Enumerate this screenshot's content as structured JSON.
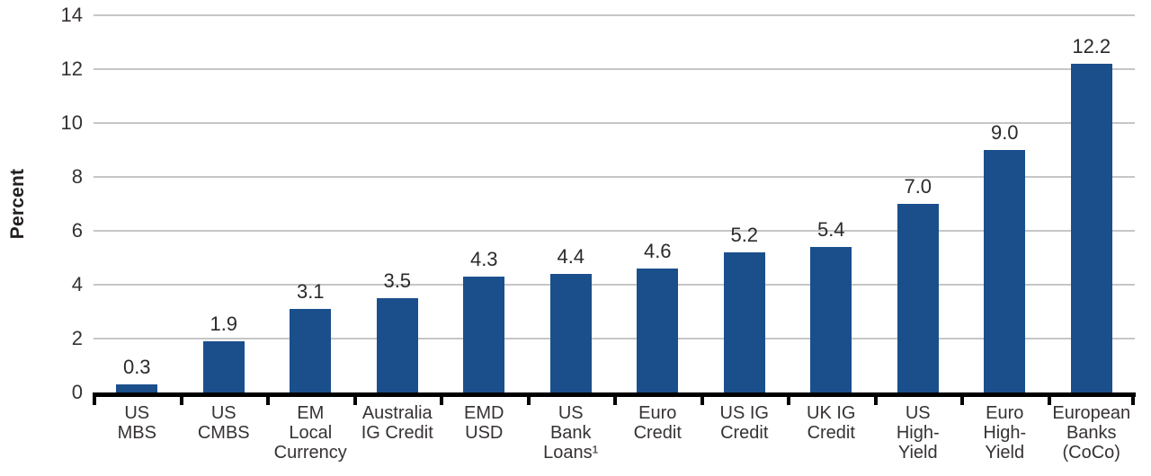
{
  "colors": {
    "bar": "#1a4f8c",
    "gridline": "#c6c6c6",
    "axis": "#000000",
    "text": "#363233",
    "background": "#ffffff"
  },
  "chart_data": {
    "type": "bar",
    "title": "",
    "xlabel": "",
    "ylabel": "Percent",
    "ylim": [
      0,
      14
    ],
    "yticks": [
      0,
      2,
      4,
      6,
      8,
      10,
      12,
      14
    ],
    "grid": true,
    "legend": false,
    "categories": [
      "US\nMBS",
      "US\nCMBS",
      "EM\nLocal\nCurrency",
      "Australia\nIG Credit",
      "EMD\nUSD",
      "US\nBank\nLoans¹",
      "Euro\nCredit",
      "US IG\nCredit",
      "UK IG\nCredit",
      "US\nHigh-\nYield",
      "Euro\nHigh-\nYield",
      "European\nBanks\n(CoCo)"
    ],
    "values": [
      0.3,
      1.9,
      3.1,
      3.5,
      4.3,
      4.4,
      4.6,
      5.2,
      5.4,
      7.0,
      9.0,
      12.2
    ],
    "value_labels": [
      "0.3",
      "1.9",
      "3.1",
      "3.5",
      "4.3",
      "4.4",
      "4.6",
      "5.2",
      "5.4",
      "7.0",
      "9.0",
      "12.2"
    ]
  }
}
